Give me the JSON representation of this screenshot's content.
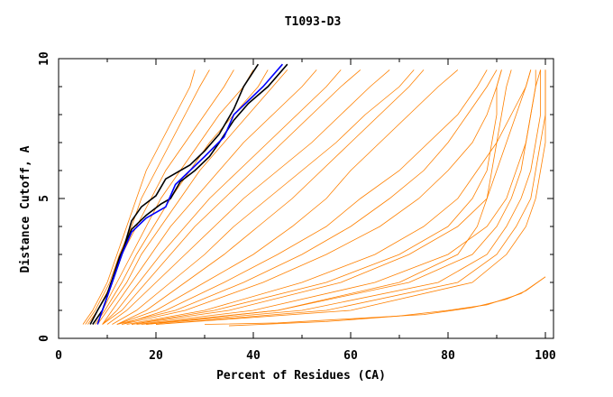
{
  "chart_data": {
    "type": "line",
    "title": "T1093-D3",
    "xlabel": "Percent of Residues (CA)",
    "ylabel": "Distance Cutoff, A",
    "xlim": [
      0,
      100
    ],
    "ylim": [
      0,
      10
    ],
    "xticks": [
      "0",
      "20",
      "40",
      "60",
      "80",
      "100"
    ],
    "yticks": [
      "0",
      "5",
      "10"
    ],
    "grid": false,
    "colors": {
      "models": "#ff8000",
      "highlight_black": "#000000",
      "highlight_blue": "#0000ff"
    },
    "cutoffs": [
      0.5,
      1,
      2,
      3,
      4,
      5,
      6,
      7,
      8,
      9,
      9.6
    ],
    "model_series_x": [
      [
        5,
        7,
        10,
        12,
        14,
        16,
        18,
        21,
        24,
        27,
        28
      ],
      [
        5.5,
        7.5,
        10.5,
        12.5,
        15,
        17,
        20,
        23,
        26,
        29,
        31
      ],
      [
        6,
        8,
        11,
        13,
        16,
        19,
        22,
        26,
        30,
        34,
        36
      ],
      [
        7,
        9,
        12,
        15,
        18,
        21,
        25,
        29,
        33,
        38,
        40
      ],
      [
        7.5,
        9.5,
        13,
        16,
        19.5,
        23,
        27,
        31,
        36,
        41,
        43
      ],
      [
        8,
        10,
        14,
        17,
        21,
        25,
        29,
        34,
        39,
        44,
        47
      ],
      [
        9,
        11,
        15,
        19,
        23,
        28,
        33,
        38,
        44,
        50,
        53
      ],
      [
        9,
        12,
        16.5,
        21,
        26,
        31,
        37,
        43,
        49,
        55,
        58
      ],
      [
        9,
        13,
        18,
        23,
        28,
        34,
        40,
        46,
        52,
        58,
        62
      ],
      [
        10,
        14,
        20,
        26,
        32,
        38,
        45,
        52,
        58,
        64,
        68
      ],
      [
        11,
        16,
        23,
        30,
        36,
        43,
        50,
        57,
        63,
        70,
        73
      ],
      [
        12,
        18,
        26,
        34,
        41,
        48,
        54,
        60,
        66,
        72,
        75
      ],
      [
        12,
        20,
        30,
        40,
        48,
        55,
        60,
        66,
        72,
        78,
        82
      ],
      [
        13,
        22,
        34,
        45,
        55,
        62,
        70,
        76,
        82,
        86,
        88
      ],
      [
        12,
        24,
        38,
        50,
        60,
        68,
        75,
        80,
        84,
        88,
        90
      ],
      [
        13,
        26,
        42,
        55,
        66,
        74,
        80,
        85,
        88,
        90,
        91
      ],
      [
        14,
        30,
        50,
        65,
        75,
        82,
        86,
        90,
        93,
        96,
        97
      ],
      [
        15,
        32,
        55,
        70,
        80,
        85,
        88,
        89,
        90,
        90,
        91
      ],
      [
        15,
        35,
        58,
        72,
        82,
        88,
        90,
        92,
        94,
        96,
        97
      ],
      [
        16,
        40,
        65,
        80,
        88,
        92,
        94,
        96,
        97,
        98,
        98
      ],
      [
        18,
        45,
        70,
        82,
        86,
        88,
        89,
        90,
        91,
        92,
        93
      ],
      [
        17,
        45,
        72,
        85,
        90,
        93,
        95,
        96,
        97,
        98,
        99
      ],
      [
        18,
        50,
        78,
        88,
        92,
        95,
        97,
        98,
        99,
        99,
        99
      ],
      [
        20,
        55,
        82,
        90,
        94,
        97,
        98,
        99,
        100,
        100,
        100
      ],
      [
        20,
        60,
        85,
        92,
        96,
        98,
        99,
        100,
        100,
        100,
        100
      ]
    ],
    "extra_series": [
      {
        "points": [
          [
            30,
            0.5
          ],
          [
            45,
            0.55
          ],
          [
            60,
            0.7
          ],
          [
            75,
            0.85
          ],
          [
            85,
            1.1
          ],
          [
            92,
            1.4
          ],
          [
            96,
            1.7
          ],
          [
            100,
            2.2
          ]
        ]
      },
      {
        "points": [
          [
            35,
            0.45
          ],
          [
            55,
            0.6
          ],
          [
            70,
            0.8
          ],
          [
            80,
            1.0
          ],
          [
            88,
            1.2
          ],
          [
            95,
            1.6
          ],
          [
            100,
            2.2
          ]
        ]
      }
    ],
    "highlight_series": [
      {
        "color": "#000000",
        "points": [
          [
            7,
            0.5
          ],
          [
            9,
            1
          ],
          [
            10,
            1.5
          ],
          [
            11,
            2
          ],
          [
            13,
            3
          ],
          [
            15,
            4.2
          ],
          [
            17,
            4.7
          ],
          [
            20,
            5.1
          ],
          [
            22,
            5.7
          ],
          [
            27,
            6.2
          ],
          [
            30,
            6.7
          ],
          [
            33,
            7.3
          ],
          [
            36,
            8.2
          ],
          [
            38,
            9
          ],
          [
            41,
            9.8
          ]
        ]
      },
      {
        "color": "#000000",
        "points": [
          [
            6.5,
            0.5
          ],
          [
            8,
            1
          ],
          [
            10,
            1.6
          ],
          [
            11,
            2.1
          ],
          [
            12.5,
            2.9
          ],
          [
            15,
            3.9
          ],
          [
            18,
            4.4
          ],
          [
            21,
            4.8
          ],
          [
            23,
            5
          ],
          [
            25,
            5.6
          ],
          [
            28,
            6
          ],
          [
            31,
            6.5
          ],
          [
            33,
            7
          ],
          [
            36,
            7.8
          ],
          [
            39,
            8.4
          ],
          [
            43,
            9
          ],
          [
            47,
            9.8
          ]
        ]
      },
      {
        "color": "#0000ff",
        "points": [
          [
            8,
            0.5
          ],
          [
            9,
            1
          ],
          [
            10,
            1.5
          ],
          [
            11,
            2
          ],
          [
            12,
            2.5
          ],
          [
            13,
            3
          ],
          [
            15,
            3.8
          ],
          [
            18,
            4.3
          ],
          [
            22,
            4.7
          ],
          [
            24,
            5.5
          ],
          [
            27,
            6
          ],
          [
            30,
            6.5
          ],
          [
            34,
            7.2
          ],
          [
            36,
            8
          ],
          [
            39,
            8.5
          ],
          [
            42,
            9
          ],
          [
            46,
            9.8
          ]
        ]
      }
    ]
  }
}
